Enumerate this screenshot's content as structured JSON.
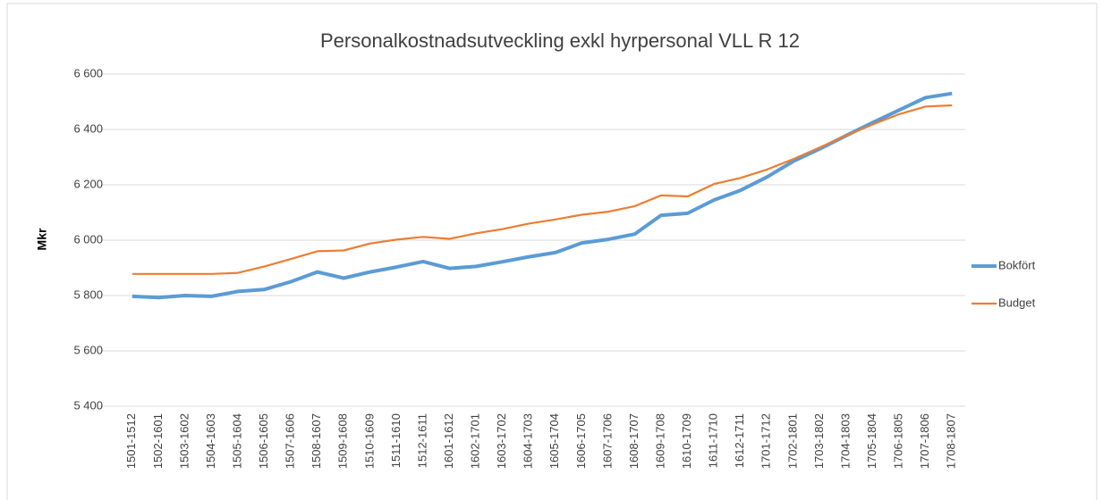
{
  "chart_data": {
    "type": "line",
    "title": "Personalkostnadsutveckling  exkl hyrpersonal VLL  R 12",
    "y_label": "Mkr",
    "categories": [
      "1501-1512",
      "1502-1601",
      "1503-1602",
      "1504-1603",
      "1505-1604",
      "1506-1605",
      "1507-1606",
      "1508-1607",
      "1509-1608",
      "1510-1609",
      "1511-1610",
      "1512-1611",
      "1601-1612",
      "1602-1701",
      "1603-1702",
      "1604-1703",
      "1605-1704",
      "1606-1705",
      "1607-1706",
      "1608-1707",
      "1609-1708",
      "1610-1709",
      "1611-1710",
      "1612-1711",
      "1701-1712",
      "1702-1801",
      "1703-1802",
      "1704-1803",
      "1705-1804",
      "1706-1805",
      "1707-1806",
      "1708-1807"
    ],
    "series": [
      {
        "name": "Bokfört",
        "color": "#5b9bd5",
        "width": 4,
        "values": [
          5797,
          5793,
          5800,
          5797,
          5815,
          5822,
          5850,
          5885,
          5863,
          5885,
          5903,
          5923,
          5898,
          5905,
          5922,
          5940,
          5955,
          5990,
          6003,
          6022,
          6090,
          6097,
          6145,
          6180,
          6228,
          6285,
          6330,
          6378,
          6425,
          6470,
          6515,
          6530
        ]
      },
      {
        "name": "Budget",
        "color": "#ed7d31",
        "width": 2.2,
        "values": [
          5878,
          5878,
          5878,
          5878,
          5882,
          5905,
          5932,
          5960,
          5963,
          5988,
          6002,
          6012,
          6005,
          6025,
          6040,
          6060,
          6075,
          6092,
          6103,
          6123,
          6162,
          6158,
          6203,
          6225,
          6255,
          6293,
          6335,
          6378,
          6418,
          6455,
          6483,
          6487
        ]
      }
    ],
    "ylim": [
      5400,
      6600
    ],
    "yticks": [
      {
        "value": 5400,
        "label": "5 400"
      },
      {
        "value": 5600,
        "label": "5 600"
      },
      {
        "value": 5800,
        "label": "5 800"
      },
      {
        "value": 6000,
        "label": "6 000"
      },
      {
        "value": 6200,
        "label": "6 200"
      },
      {
        "value": 6400,
        "label": "6 400"
      },
      {
        "value": 6600,
        "label": "6 600"
      }
    ],
    "grid": true,
    "legend": "right"
  }
}
